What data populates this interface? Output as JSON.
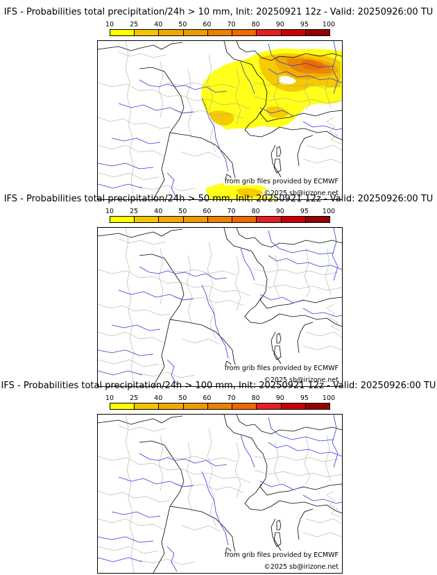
{
  "colorbar": {
    "ticks": [
      "10",
      "25",
      "40",
      "50",
      "60",
      "70",
      "80",
      "90",
      "95",
      "100"
    ],
    "colors": [
      "#ffff00",
      "#f5c400",
      "#f2a800",
      "#ee9a00",
      "#ea8200",
      "#f06800",
      "#e52020",
      "#c80000",
      "#960000",
      "#640000"
    ]
  },
  "panels": [
    {
      "title": "IFS - Probabilities total precipitation/24h > 10 mm, Init: 20250921 12z - Valid: 20250926:00 TU",
      "credit_source": "from grib files provided by ECMWF",
      "credit_copyright": "©2025 sb@irizone.net",
      "has_precip": true
    },
    {
      "title": "IFS - Probabilities total precipitation/24h > 50 mm, Init: 20250921 12z - Valid: 20250926:00 TU",
      "credit_source": "from grib files provided by ECMWF",
      "credit_copyright": "©2025 sb@irizone.net",
      "has_precip": false
    },
    {
      "title": "IFS - Probabilities total precipitation/24h > 100 mm, Init: 20250921 12z - Valid: 20250926:00 TU",
      "credit_source": "from grib files provided by ECMWF",
      "credit_copyright": "©2025 sb@irizone.net",
      "has_precip": false
    }
  ]
}
